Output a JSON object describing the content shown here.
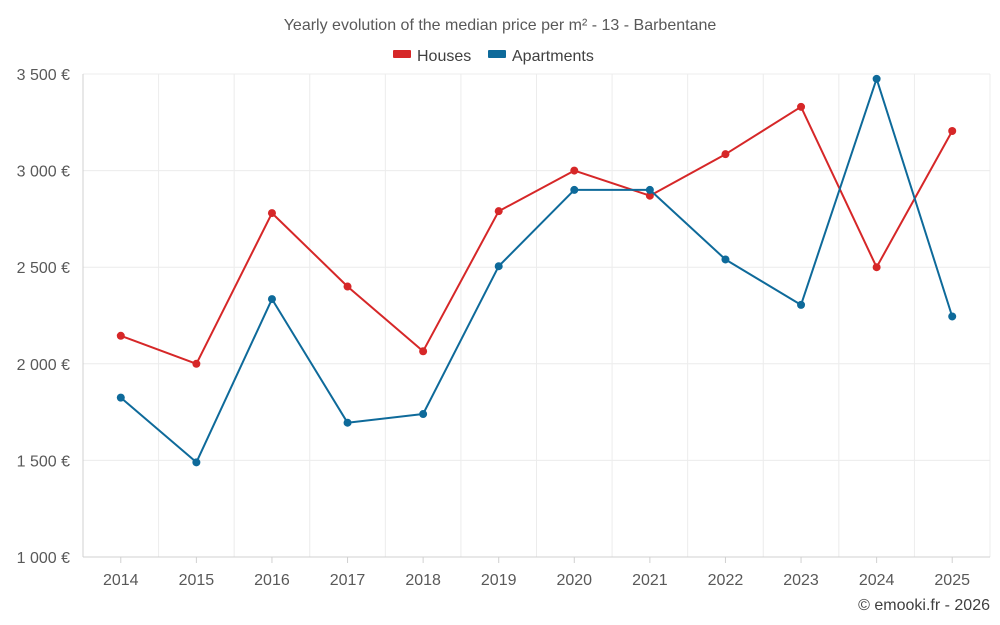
{
  "chart_data": {
    "type": "line",
    "title": "Yearly evolution of the median price per m² - 13 - Barbentane",
    "categories": [
      "2014",
      "2015",
      "2016",
      "2017",
      "2018",
      "2019",
      "2020",
      "2021",
      "2022",
      "2023",
      "2024",
      "2025"
    ],
    "series": [
      {
        "name": "Houses",
        "color": "#d62728",
        "values": [
          2145,
          2000,
          2780,
          2400,
          2065,
          2790,
          3000,
          2870,
          3085,
          3330,
          2500,
          3205
        ]
      },
      {
        "name": "Apartments",
        "color": "#0e6a9a",
        "values": [
          1825,
          1490,
          2335,
          1695,
          1740,
          2505,
          2900,
          2900,
          2540,
          2305,
          3475,
          2245
        ]
      }
    ],
    "yticks": [
      1000,
      1500,
      2000,
      2500,
      3000,
      3500
    ],
    "ytick_labels": [
      "1 000 €",
      "1 500 €",
      "2 000 €",
      "2 500 €",
      "3 000 €",
      "3 500 €"
    ],
    "ylim": [
      1000,
      3500
    ],
    "xlabel": "",
    "ylabel": "",
    "grid": true,
    "legend_position": "top-center"
  },
  "credit": "© emooki.fr - 2026"
}
